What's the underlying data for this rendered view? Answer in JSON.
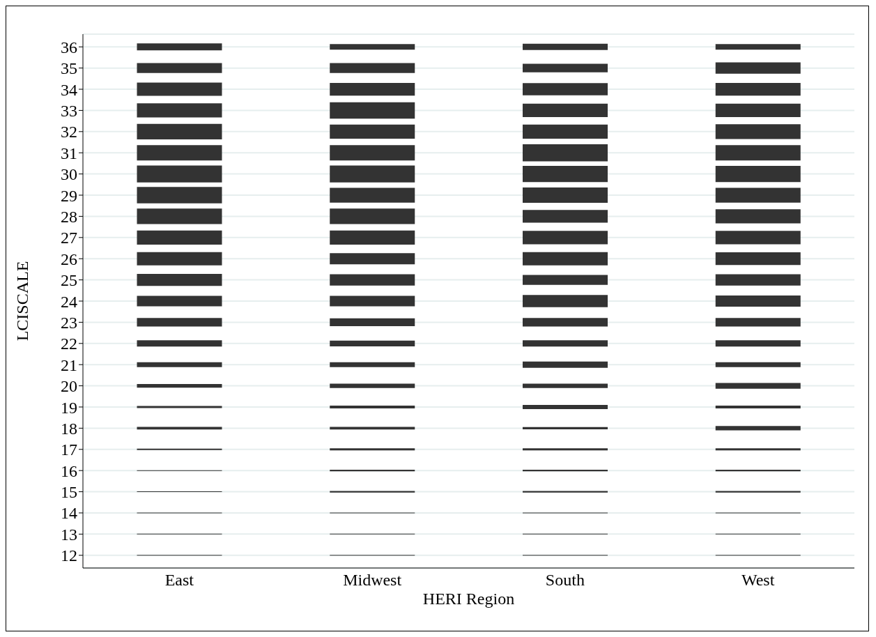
{
  "chart_data": {
    "type": "bar",
    "xlabel": "HERI Region",
    "ylabel": "LCISCALE",
    "categories": [
      "East",
      "Midwest",
      "South",
      "West"
    ],
    "ylim": [
      11.4,
      36.6
    ],
    "yticks": [
      12,
      13,
      14,
      15,
      16,
      17,
      18,
      19,
      20,
      21,
      22,
      23,
      24,
      25,
      26,
      27,
      28,
      29,
      30,
      31,
      32,
      33,
      34,
      35,
      36
    ],
    "grid": "y",
    "series": [
      {
        "color": "#333333",
        "values": [
          0.03,
          0.03,
          0.03,
          0.03
        ],
        "base": [
          11.985,
          11.985,
          11.985,
          11.985
        ]
      },
      {
        "color": "#333333",
        "values": [
          0.03,
          0.03,
          0.03,
          0.03
        ],
        "base": [
          12.985,
          12.985,
          12.985,
          12.985
        ]
      },
      {
        "color": "#333333",
        "values": [
          0.03,
          0.03,
          0.03,
          0.03
        ],
        "base": [
          13.985,
          13.985,
          13.985,
          13.985
        ]
      },
      {
        "color": "#333333",
        "values": [
          0.03,
          0.07,
          0.07,
          0.07
        ],
        "base": [
          14.985,
          14.965,
          14.965,
          14.965
        ]
      },
      {
        "color": "#333333",
        "values": [
          0.03,
          0.07,
          0.07,
          0.07
        ],
        "base": [
          15.985,
          15.965,
          15.965,
          15.965
        ]
      },
      {
        "color": "#333333",
        "values": [
          0.07,
          0.1,
          0.1,
          0.1
        ],
        "base": [
          16.965,
          16.95,
          16.95,
          16.95
        ]
      },
      {
        "color": "#333333",
        "values": [
          0.13,
          0.13,
          0.1,
          0.2
        ],
        "base": [
          17.935,
          17.935,
          17.95,
          17.9
        ]
      },
      {
        "color": "#333333",
        "values": [
          0.1,
          0.13,
          0.2,
          0.13
        ],
        "base": [
          18.95,
          18.935,
          18.9,
          18.935
        ]
      },
      {
        "color": "#333333",
        "values": [
          0.17,
          0.2,
          0.2,
          0.27
        ],
        "base": [
          19.915,
          19.9,
          19.9,
          19.865
        ]
      },
      {
        "color": "#333333",
        "values": [
          0.23,
          0.23,
          0.3,
          0.23
        ],
        "base": [
          20.885,
          20.885,
          20.85,
          20.885
        ]
      },
      {
        "color": "#333333",
        "values": [
          0.3,
          0.27,
          0.3,
          0.3
        ],
        "base": [
          21.85,
          21.865,
          21.85,
          21.85
        ]
      },
      {
        "color": "#333333",
        "values": [
          0.4,
          0.37,
          0.4,
          0.4
        ],
        "base": [
          22.8,
          22.815,
          22.8,
          22.8
        ]
      },
      {
        "color": "#333333",
        "values": [
          0.5,
          0.5,
          0.57,
          0.53
        ],
        "base": [
          23.75,
          23.75,
          23.715,
          23.735
        ]
      },
      {
        "color": "#333333",
        "values": [
          0.57,
          0.53,
          0.47,
          0.53
        ],
        "base": [
          24.715,
          24.735,
          24.765,
          24.735
        ]
      },
      {
        "color": "#333333",
        "values": [
          0.63,
          0.53,
          0.63,
          0.6
        ],
        "base": [
          25.685,
          25.735,
          25.685,
          25.7
        ]
      },
      {
        "color": "#333333",
        "values": [
          0.67,
          0.67,
          0.63,
          0.63
        ],
        "base": [
          26.665,
          26.665,
          26.685,
          26.685
        ]
      },
      {
        "color": "#333333",
        "values": [
          0.73,
          0.73,
          0.6,
          0.67
        ],
        "base": [
          27.635,
          27.635,
          27.7,
          27.665
        ]
      },
      {
        "color": "#333333",
        "values": [
          0.77,
          0.7,
          0.73,
          0.7
        ],
        "base": [
          28.615,
          28.65,
          28.635,
          28.65
        ]
      },
      {
        "color": "#333333",
        "values": [
          0.8,
          0.8,
          0.77,
          0.77
        ],
        "base": [
          29.6,
          29.6,
          29.615,
          29.615
        ]
      },
      {
        "color": "#333333",
        "values": [
          0.73,
          0.73,
          0.8,
          0.73
        ],
        "base": [
          30.635,
          30.635,
          30.6,
          30.635
        ]
      },
      {
        "color": "#333333",
        "values": [
          0.73,
          0.67,
          0.67,
          0.7
        ],
        "base": [
          31.635,
          31.665,
          31.665,
          31.65
        ]
      },
      {
        "color": "#333333",
        "values": [
          0.67,
          0.77,
          0.63,
          0.63
        ],
        "base": [
          32.665,
          32.615,
          32.685,
          32.685
        ]
      },
      {
        "color": "#333333",
        "values": [
          0.63,
          0.6,
          0.57,
          0.6
        ],
        "base": [
          33.685,
          33.7,
          33.715,
          33.7
        ]
      },
      {
        "color": "#333333",
        "values": [
          0.47,
          0.47,
          0.4,
          0.53
        ],
        "base": [
          34.765,
          34.765,
          34.8,
          34.735
        ]
      },
      {
        "color": "#333333",
        "values": [
          0.33,
          0.27,
          0.3,
          0.27
        ],
        "base": [
          35.835,
          35.865,
          35.85,
          35.865
        ]
      }
    ]
  }
}
